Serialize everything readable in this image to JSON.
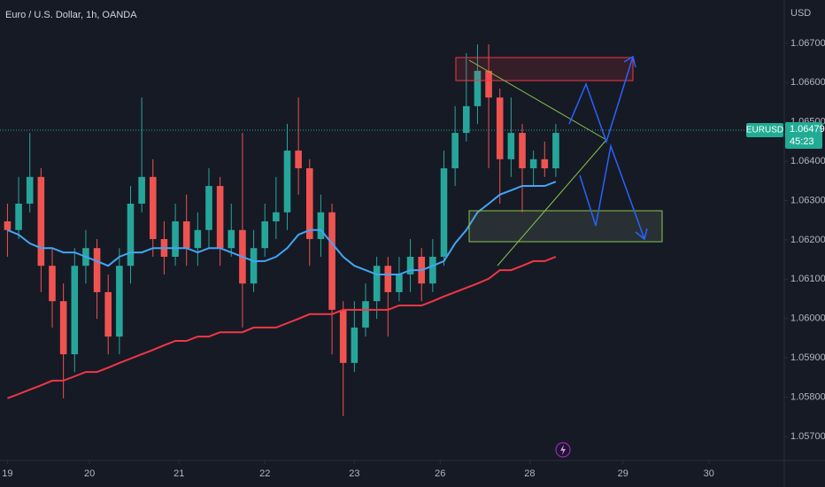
{
  "chart_data": {
    "type": "candlestick",
    "title": "Euro / U.S. Dollar, 1h, OANDA",
    "currency": "USD",
    "xlim": [
      -2,
      208
    ],
    "xticks": [
      {
        "value": 0,
        "label": "19"
      },
      {
        "value": 22,
        "label": "20"
      },
      {
        "value": 46,
        "label": "21"
      },
      {
        "value": 69,
        "label": "22"
      },
      {
        "value": 93,
        "label": "23"
      },
      {
        "value": 116,
        "label": "26"
      },
      {
        "value": 140,
        "label": "28"
      },
      {
        "value": 165,
        "label": "29"
      },
      {
        "value": 188,
        "label": "30"
      }
    ],
    "ylim": [
      1.05639,
      1.0681
    ],
    "yticks": [
      {
        "value": 1.057,
        "label": "1.05700"
      },
      {
        "value": 1.058,
        "label": "1.05800"
      },
      {
        "value": 1.059,
        "label": "1.05900"
      },
      {
        "value": 1.06,
        "label": "1.06000"
      },
      {
        "value": 1.061,
        "label": "1.06100"
      },
      {
        "value": 1.062,
        "label": "1.06200"
      },
      {
        "value": 1.063,
        "label": "1.06300"
      },
      {
        "value": 1.064,
        "label": "1.06400"
      },
      {
        "value": 1.065,
        "label": "1.06500"
      },
      {
        "value": 1.066,
        "label": "1.06600"
      },
      {
        "value": 1.067,
        "label": "1.06700"
      }
    ],
    "grid": false,
    "up_color": "#26a69a",
    "down_color": "#ef5350",
    "x": [
      0,
      3,
      6,
      9,
      12,
      15,
      18,
      21,
      24,
      27,
      30,
      33,
      36,
      39,
      42,
      45,
      48,
      51,
      54,
      57,
      60,
      63,
      66,
      69,
      72,
      75,
      78,
      81,
      84,
      87,
      90,
      93,
      96,
      99,
      102,
      105,
      108,
      111,
      114,
      117,
      120,
      123,
      126,
      129,
      132,
      135,
      138,
      141,
      144,
      147
    ],
    "open": [
      1.06247,
      1.06225,
      1.06292,
      1.0636,
      1.06134,
      1.06044,
      1.05909,
      1.06134,
      1.06179,
      1.06067,
      1.05954,
      1.06134,
      1.06292,
      1.0636,
      1.06202,
      1.06157,
      1.06247,
      1.06179,
      1.06225,
      1.06337,
      1.06179,
      1.06225,
      1.06089,
      1.06179,
      1.06247,
      1.0627,
      1.06427,
      1.06382,
      1.06202,
      1.0627,
      1.06022,
      1.05887,
      1.05977,
      1.06044,
      1.06134,
      1.06067,
      1.06112,
      1.06157,
      1.06089,
      1.06157,
      1.06382,
      1.06472,
      1.0654,
      1.0663,
      1.06562,
      1.06405,
      1.06472,
      1.06382,
      1.06405,
      1.06382
    ],
    "high": [
      1.06292,
      1.0636,
      1.06472,
      1.06382,
      1.06179,
      1.06089,
      1.06179,
      1.06225,
      1.06202,
      1.06112,
      1.06179,
      1.06337,
      1.06562,
      1.06405,
      1.06247,
      1.06292,
      1.06315,
      1.0627,
      1.06382,
      1.0636,
      1.06292,
      1.06472,
      1.06225,
      1.06292,
      1.0636,
      1.06495,
      1.06562,
      1.06405,
      1.06315,
      1.06292,
      1.06044,
      1.06044,
      1.06089,
      1.06157,
      1.06157,
      1.06157,
      1.06202,
      1.06179,
      1.06202,
      1.06427,
      1.0654,
      1.06675,
      1.06697,
      1.06697,
      1.06585,
      1.06562,
      1.06495,
      1.06427,
      1.0645,
      1.06495
    ],
    "low": [
      1.06157,
      1.06202,
      1.0627,
      1.06067,
      1.05977,
      1.05797,
      1.05864,
      1.06089,
      1.05999,
      1.05909,
      1.05909,
      1.06089,
      1.0627,
      1.06157,
      1.06112,
      1.06134,
      1.06134,
      1.06134,
      1.06179,
      1.06134,
      1.06157,
      1.05977,
      1.06067,
      1.06157,
      1.06202,
      1.06225,
      1.06315,
      1.06134,
      1.06157,
      1.05909,
      1.05752,
      1.05864,
      1.05954,
      1.05999,
      1.05954,
      1.06044,
      1.06067,
      1.06044,
      1.06067,
      1.06134,
      1.06337,
      1.0645,
      1.06495,
      1.06382,
      1.06292,
      1.0636,
      1.0627,
      1.06337,
      1.0636,
      1.0636
    ],
    "close": [
      1.06225,
      1.06292,
      1.0636,
      1.06134,
      1.06044,
      1.05909,
      1.06134,
      1.06179,
      1.06067,
      1.05954,
      1.06134,
      1.06292,
      1.0636,
      1.06202,
      1.06157,
      1.06247,
      1.06179,
      1.06225,
      1.06337,
      1.06179,
      1.06225,
      1.06089,
      1.06179,
      1.06247,
      1.0627,
      1.06427,
      1.06382,
      1.06202,
      1.0627,
      1.06022,
      1.05887,
      1.05977,
      1.06044,
      1.06134,
      1.06067,
      1.06112,
      1.06157,
      1.06089,
      1.06157,
      1.06382,
      1.06472,
      1.0654,
      1.0663,
      1.06562,
      1.06405,
      1.06472,
      1.06382,
      1.06405,
      1.06382,
      1.06472
    ],
    "moving_averages": [
      {
        "color": "#42a5f5",
        "values": [
          1.06225,
          1.06213,
          1.06191,
          1.06179,
          1.06179,
          1.06168,
          1.06168,
          1.06157,
          1.06146,
          1.06134,
          1.06157,
          1.06168,
          1.06168,
          1.06179,
          1.06179,
          1.06179,
          1.06179,
          1.06168,
          1.06179,
          1.06179,
          1.06168,
          1.06157,
          1.06146,
          1.06146,
          1.06157,
          1.06179,
          1.06213,
          1.06225,
          1.06225,
          1.06191,
          1.06157,
          1.06134,
          1.06123,
          1.06112,
          1.06112,
          1.06112,
          1.06123,
          1.06123,
          1.06134,
          1.06146,
          1.06191,
          1.06225,
          1.0627,
          1.06292,
          1.06315,
          1.06326,
          1.06337,
          1.06337,
          1.06337,
          1.06348
        ]
      },
      {
        "color": "#f23645",
        "values": [
          1.05797,
          1.05808,
          1.05819,
          1.0583,
          1.05842,
          1.05842,
          1.05853,
          1.05864,
          1.05864,
          1.05875,
          1.05887,
          1.05898,
          1.05909,
          1.0592,
          1.05932,
          1.05943,
          1.05943,
          1.05954,
          1.05954,
          1.05965,
          1.05965,
          1.05965,
          1.05977,
          1.05977,
          1.05977,
          1.05988,
          1.05999,
          1.06011,
          1.06011,
          1.06011,
          1.06022,
          1.06022,
          1.06022,
          1.06022,
          1.06022,
          1.06033,
          1.06033,
          1.06033,
          1.06044,
          1.06056,
          1.06067,
          1.06078,
          1.06089,
          1.06101,
          1.06123,
          1.06123,
          1.06134,
          1.06146,
          1.06146,
          1.06157
        ]
      }
    ],
    "price_label": {
      "name": "EURUSD",
      "value": 1.06479,
      "countdown": "45:23",
      "color": "#22ab94"
    }
  }
}
